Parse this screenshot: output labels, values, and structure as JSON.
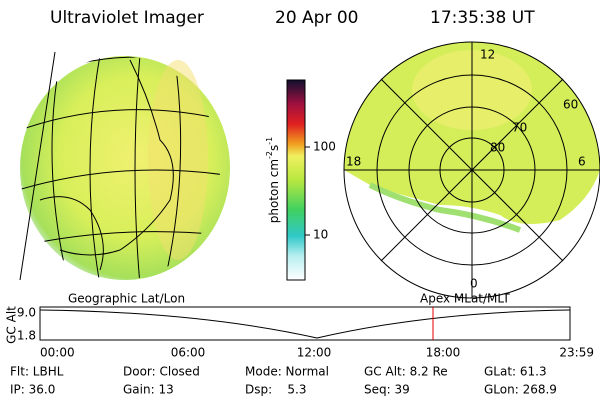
{
  "header": {
    "title": "Ultraviolet Imager",
    "date": "20 Apr 00",
    "time": "17:35:38 UT"
  },
  "colorbar": {
    "label_main": "photon cm",
    "label_exp1": "-2",
    "label_unit2": "s",
    "label_exp2": "-1",
    "ticks": [
      "100",
      "10"
    ]
  },
  "polar_plot": {
    "mlt_labels": [
      "12",
      "18",
      "6",
      "0"
    ],
    "lat_labels": [
      "60",
      "70",
      "80"
    ]
  },
  "orbit_plot": {
    "y_axis_label": "GC Alt",
    "y_ticks": [
      "9.0",
      "1.8"
    ],
    "left_label": "Geographic Lat/Lon",
    "right_label": "Apex MLat/MLT",
    "x_ticks": [
      "00:00",
      "06:00",
      "12:00",
      "18:00",
      "23:59"
    ]
  },
  "info": {
    "rows": [
      [
        "Flt: LBHL",
        "Door: Closed",
        "Mode: Normal",
        "GC Alt: 8.2 Re",
        "GLat: 61.3"
      ],
      [
        "IP: 36.0",
        "Gain: 13",
        "Dsp:    5.3",
        "Seq: 39",
        "GLon: 268.9"
      ]
    ]
  }
}
